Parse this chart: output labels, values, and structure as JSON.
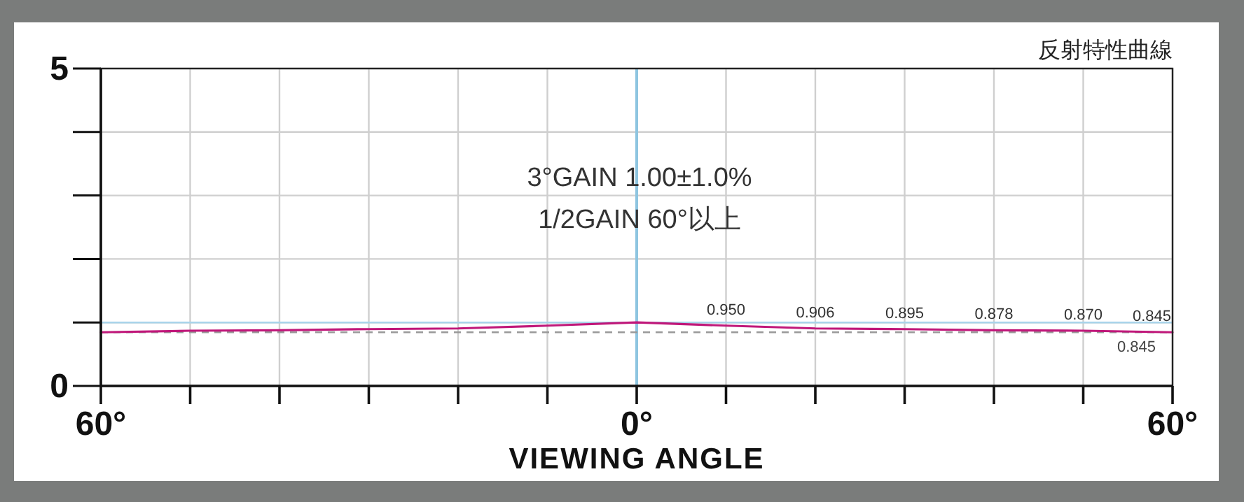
{
  "chart_data": {
    "type": "line",
    "title": "反射特性曲線",
    "xlabel": "VIEWING ANGLE",
    "x": [
      -60,
      -50,
      -40,
      -30,
      -20,
      -10,
      0,
      10,
      20,
      30,
      40,
      50,
      60
    ],
    "series": [
      {
        "color": "#c0187a",
        "values": [
          0.845,
          0.87,
          0.878,
          0.895,
          0.906,
          0.95,
          1.0,
          0.95,
          0.906,
          0.895,
          0.878,
          0.87,
          0.845
        ],
        "value_labels": [
          null,
          null,
          null,
          null,
          null,
          null,
          null,
          "0.950",
          "0.906",
          "0.895",
          "0.878",
          "0.870",
          "0.845"
        ]
      }
    ],
    "xlim": [
      -60,
      60
    ],
    "xticks": [
      {
        "value": -60,
        "label": "60°"
      },
      {
        "value": -50,
        "label": null
      },
      {
        "value": -40,
        "label": null
      },
      {
        "value": -30,
        "label": null
      },
      {
        "value": -20,
        "label": null
      },
      {
        "value": -10,
        "label": null
      },
      {
        "value": 0,
        "label": "0°"
      },
      {
        "value": 10,
        "label": null
      },
      {
        "value": 20,
        "label": null
      },
      {
        "value": 30,
        "label": null
      },
      {
        "value": 40,
        "label": null
      },
      {
        "value": 50,
        "label": null
      },
      {
        "value": 60,
        "label": "60°"
      }
    ],
    "ylim": [
      0,
      5
    ],
    "yticks": [
      0,
      {
        "value": 1,
        "label": null
      },
      {
        "value": 2,
        "label": null
      },
      {
        "value": 3,
        "label": null
      },
      {
        "value": 4,
        "label": null
      },
      5
    ],
    "grid": true,
    "ref_lines": [
      {
        "axis": "x",
        "value": 0,
        "color": "#8ec5e0"
      },
      {
        "axis": "y",
        "value": 1,
        "color": "#a8d4ea"
      },
      {
        "axis": "y",
        "value": 0.845,
        "label": "0.845",
        "color": "#999999",
        "line_style": "dashed"
      }
    ],
    "annotations": [
      "3°GAIN 1.00±1.0%",
      "1/2GAIN 60°以上"
    ]
  }
}
